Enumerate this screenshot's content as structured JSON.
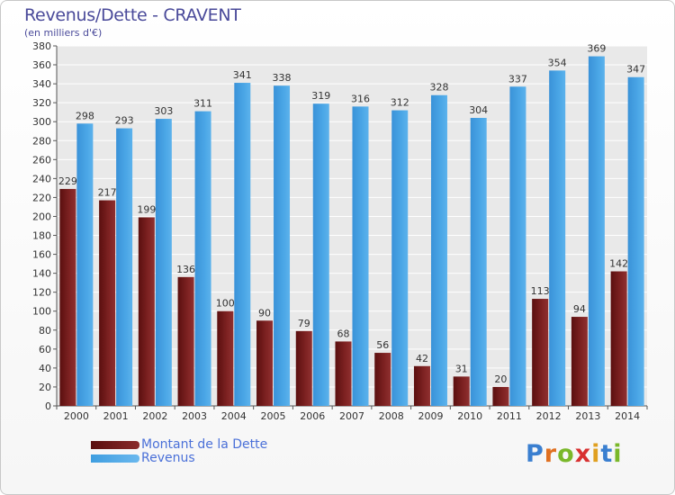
{
  "header": {
    "title": "Revenus/Dette - CRAVENT",
    "subtitle": "(en milliers d'€)"
  },
  "chart_data": {
    "type": "bar",
    "title": "Revenus/Dette - CRAVENT",
    "subtitle": "(en milliers d'€)",
    "categories": [
      "2000",
      "2001",
      "2002",
      "2003",
      "2004",
      "2005",
      "2006",
      "2007",
      "2008",
      "2009",
      "2010",
      "2011",
      "2012",
      "2013",
      "2014"
    ],
    "series": [
      {
        "name": "Montant de la Dette",
        "color": "#7a1e1e",
        "values": [
          229,
          217,
          199,
          136,
          100,
          90,
          79,
          68,
          56,
          42,
          31,
          20,
          113,
          94,
          142
        ]
      },
      {
        "name": "Revenus",
        "color": "#3f9ee0",
        "values": [
          298,
          293,
          303,
          311,
          341,
          338,
          319,
          316,
          312,
          328,
          304,
          337,
          354,
          369,
          347
        ]
      }
    ],
    "ylim": [
      0,
      380
    ],
    "ytick_step": 20,
    "grid": true,
    "legend_position": "bottom-left"
  },
  "legend": {
    "items": [
      {
        "label": "Montant de la Dette",
        "color": "#5a0f0f"
      },
      {
        "label": "Revenus",
        "color": "#3f9ee0"
      }
    ]
  },
  "logo": {
    "letters": [
      "P",
      "r",
      "o",
      "x",
      "i",
      "t",
      "i"
    ],
    "colors": [
      "#3a7fd0",
      "#e07020",
      "#7ab82a",
      "#d83030",
      "#e0a020",
      "#3a7fd0",
      "#7ab82a"
    ]
  }
}
